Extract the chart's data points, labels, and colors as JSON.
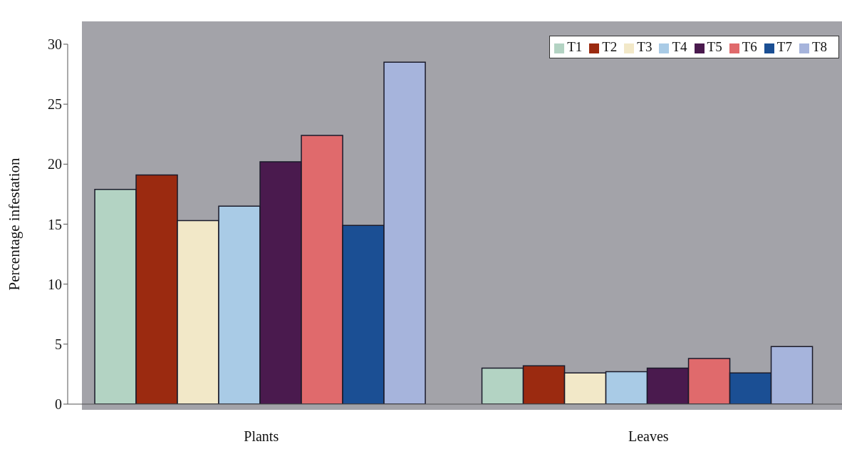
{
  "chart_data": {
    "type": "bar",
    "ylabel": "Percentage infestation",
    "categories": [
      "Plants",
      "Leaves"
    ],
    "series": [
      {
        "name": "T1",
        "color": "#b3d3c3",
        "values": [
          17.9,
          3.0
        ]
      },
      {
        "name": "T2",
        "color": "#9b2a10",
        "values": [
          19.1,
          3.2
        ]
      },
      {
        "name": "T3",
        "color": "#f2e8c8",
        "values": [
          15.3,
          2.6
        ]
      },
      {
        "name": "T4",
        "color": "#a9cbe6",
        "values": [
          16.5,
          2.7
        ]
      },
      {
        "name": "T5",
        "color": "#4a1a4e",
        "values": [
          20.2,
          3.0
        ]
      },
      {
        "name": "T6",
        "color": "#e06a6c",
        "values": [
          22.4,
          3.8
        ]
      },
      {
        "name": "T7",
        "color": "#1b4f94",
        "values": [
          14.9,
          2.6
        ]
      },
      {
        "name": "T8",
        "color": "#a6b4dc",
        "values": [
          28.5,
          4.8
        ]
      }
    ],
    "ylim": [
      0,
      30
    ],
    "yticks": [
      0,
      5,
      10,
      15,
      20,
      25,
      30
    ],
    "grid": false,
    "legend": "top right"
  }
}
